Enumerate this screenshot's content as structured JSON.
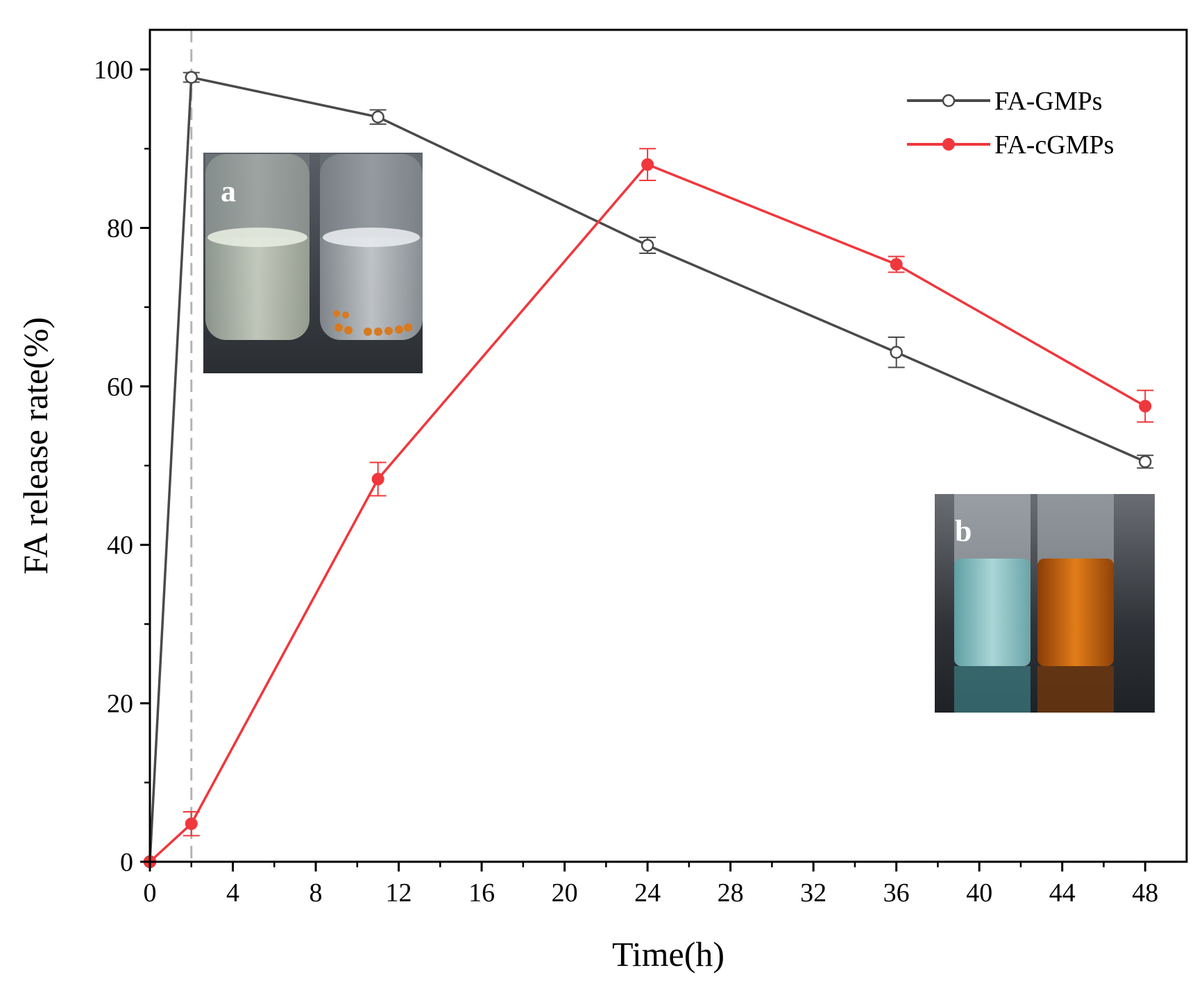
{
  "chart_data": {
    "type": "line",
    "xlabel": "Time(h)",
    "ylabel": "FA release rate(%)",
    "xlim": [
      0,
      50
    ],
    "ylim": [
      0,
      105
    ],
    "xticks": [
      0,
      4,
      8,
      12,
      16,
      20,
      24,
      28,
      32,
      36,
      40,
      44,
      48
    ],
    "xtick_labels": [
      "0",
      "4",
      "8",
      "12",
      "16",
      "20",
      "24",
      "28",
      "32",
      "36",
      "40",
      "44",
      "48"
    ],
    "yticks": [
      0,
      20,
      40,
      60,
      80,
      100
    ],
    "ytick_labels": [
      "0",
      "20",
      "40",
      "60",
      "80",
      "100"
    ],
    "grid": false,
    "legend_position": "top-right",
    "reference_line_x": 2,
    "series": [
      {
        "name": "FA-GMPs",
        "color": "#4a4a4a",
        "marker": "open-circle",
        "x": [
          0,
          2,
          11,
          24,
          36,
          48
        ],
        "y": [
          0,
          99,
          94,
          77.8,
          64.3,
          50.5
        ],
        "error": [
          0,
          0.6,
          0.9,
          1.0,
          1.9,
          0.8
        ]
      },
      {
        "name": "FA-cGMPs",
        "color": "#f0373c",
        "marker": "filled-circle",
        "x": [
          0,
          2,
          11,
          24,
          36,
          48
        ],
        "y": [
          0,
          4.8,
          48.3,
          88.0,
          75.4,
          57.5
        ],
        "error": [
          0,
          1.5,
          2.1,
          2.0,
          1.0,
          2.0
        ]
      }
    ],
    "insets": [
      {
        "label": "a",
        "description_icon": "vials-photo-icon"
      },
      {
        "label": "b",
        "description_icon": "vials-photo-icon"
      }
    ]
  }
}
